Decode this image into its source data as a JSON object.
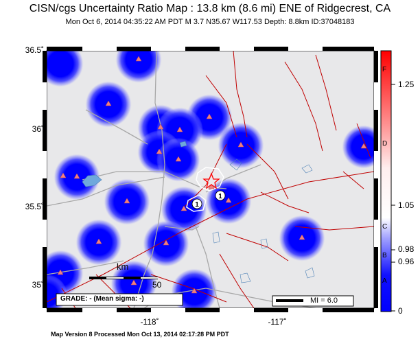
{
  "header": {
    "title": "CISN/cgs Uncertainty Ratio Map : 13.8 km (8.6 mi) ENE of Ridgecrest, CA",
    "subtitle": "Mon Oct  6, 2014 04:35:22 AM PDT   M 3.7   N35.67 W117.53   Depth: 8.8km   ID:37048183"
  },
  "axes": {
    "lat_labels": [
      "36.5˚",
      "36˚",
      "35.5˚",
      "35˚"
    ],
    "lon_labels": [
      "-118˚",
      "-117˚"
    ]
  },
  "scale_bar": {
    "unit": "km",
    "value": "50"
  },
  "grade_box": {
    "text": "GRADE: - (Mean sigma: -)"
  },
  "legend_box": {
    "text": "MI = 6.0"
  },
  "colorbar": {
    "grades": [
      "F",
      "D",
      "C",
      "B",
      "A"
    ],
    "values": [
      "1.25",
      "1.05",
      "0.98",
      "0.96",
      "0"
    ]
  },
  "footer": {
    "text": "Map Version 8 Processed Mon Oct 13, 2014 02:17:28 PM PDT"
  },
  "map": {
    "epicenter": {
      "lat": 35.67,
      "lon": -117.53
    },
    "station_markers": [
      1,
      1
    ]
  },
  "colors": {
    "low_uncertainty": "#0000ff",
    "high_uncertainty": "#ff0000",
    "neutral": "#ffffff",
    "faults": "#c00000",
    "roads": "#a0a0a0",
    "water": "#6fa8dc"
  }
}
